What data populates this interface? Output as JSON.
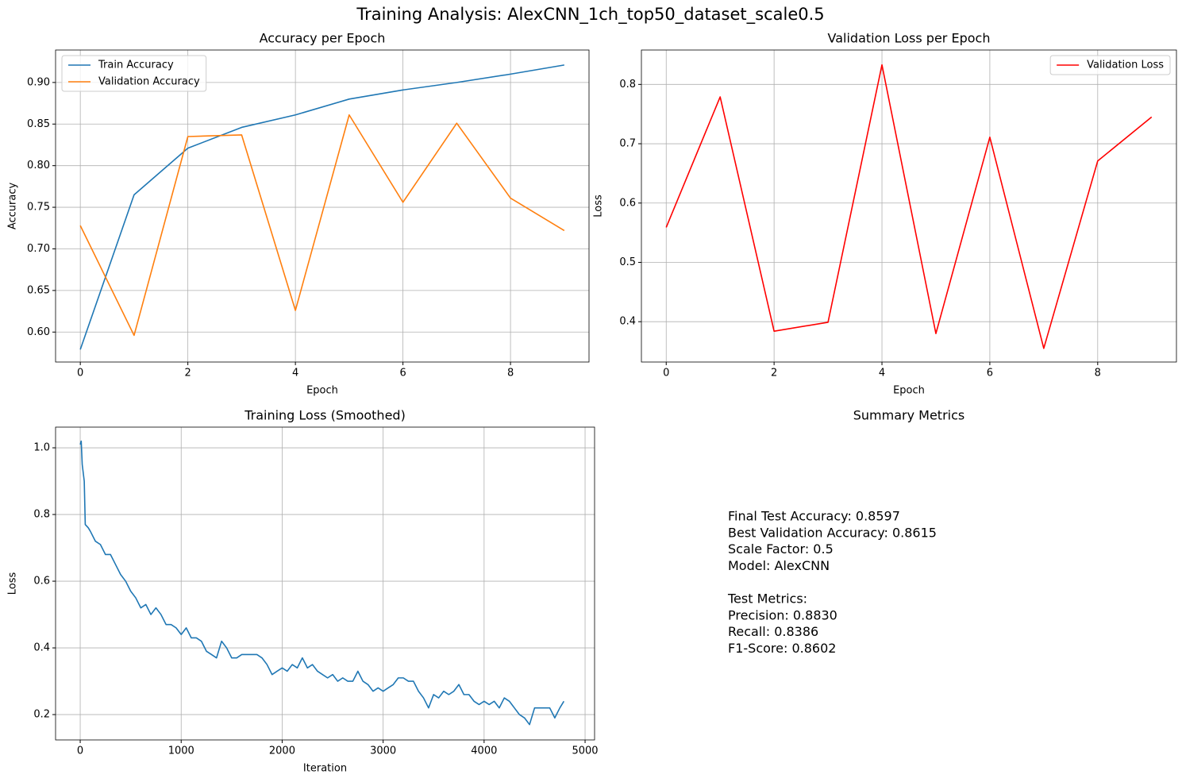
{
  "title": "Training Analysis: AlexCNN_1ch_top50_dataset_scale0.5",
  "chart_data": [
    {
      "type": "line",
      "title": "Accuracy per Epoch",
      "xlabel": "Epoch",
      "ylabel": "Accuracy",
      "x": [
        0,
        1,
        2,
        3,
        4,
        5,
        6,
        7,
        8,
        9
      ],
      "series": [
        {
          "name": "Train Accuracy",
          "color": "#1f77b4",
          "values": [
            0.579,
            0.765,
            0.821,
            0.846,
            0.861,
            0.88,
            0.891,
            0.9,
            0.91,
            0.921
          ]
        },
        {
          "name": "Validation Accuracy",
          "color": "#ff7f0e",
          "values": [
            0.728,
            0.596,
            0.835,
            0.837,
            0.626,
            0.861,
            0.756,
            0.851,
            0.761,
            0.722
          ]
        }
      ],
      "xlim": [
        -0.46,
        9.46
      ],
      "xticks": [
        0,
        2,
        4,
        6,
        8
      ],
      "ylim": [
        0.564,
        0.939
      ],
      "yticks": [
        {
          "value": 0.6,
          "label": "0.60"
        },
        0.65,
        {
          "value": 0.7,
          "label": "0.70"
        },
        0.75,
        {
          "value": 0.8,
          "label": "0.80"
        },
        0.85,
        {
          "value": 0.9,
          "label": "0.90"
        }
      ],
      "grid": true,
      "legend": "upper left"
    },
    {
      "type": "line",
      "title": "Validation Loss per Epoch",
      "xlabel": "Epoch",
      "ylabel": "Loss",
      "x": [
        0,
        1,
        2,
        3,
        4,
        5,
        6,
        7,
        8,
        9
      ],
      "series": [
        {
          "name": "Validation Loss",
          "color": "#ff0000",
          "values": [
            0.559,
            0.779,
            0.384,
            0.399,
            0.833,
            0.38,
            0.711,
            0.355,
            0.671,
            0.745
          ]
        }
      ],
      "xlim": [
        -0.46,
        9.46
      ],
      "xticks": [
        0,
        2,
        4,
        6,
        8
      ],
      "ylim": [
        0.332,
        0.858
      ],
      "yticks": [
        0.4,
        0.5,
        0.6,
        0.7,
        0.8
      ],
      "grid": true,
      "legend": "upper right"
    },
    {
      "type": "line",
      "title": "Training Loss (Smoothed)",
      "xlabel": "Iteration",
      "ylabel": "Loss",
      "x": [
        0,
        10,
        20,
        40,
        50,
        80,
        100,
        150,
        200,
        250,
        300,
        350,
        400,
        450,
        500,
        550,
        600,
        650,
        700,
        750,
        800,
        850,
        900,
        950,
        1000,
        1050,
        1100,
        1150,
        1200,
        1250,
        1300,
        1350,
        1400,
        1450,
        1500,
        1550,
        1600,
        1650,
        1700,
        1750,
        1800,
        1850,
        1900,
        1950,
        2000,
        2050,
        2100,
        2150,
        2200,
        2250,
        2300,
        2350,
        2400,
        2450,
        2500,
        2550,
        2600,
        2650,
        2700,
        2750,
        2800,
        2850,
        2900,
        2950,
        3000,
        3050,
        3100,
        3150,
        3200,
        3250,
        3300,
        3350,
        3400,
        3450,
        3500,
        3550,
        3600,
        3650,
        3700,
        3750,
        3800,
        3850,
        3900,
        3950,
        4000,
        4050,
        4100,
        4150,
        4200,
        4250,
        4300,
        4350,
        4400,
        4450,
        4500,
        4550,
        4600,
        4650,
        4700,
        4750,
        4790
      ],
      "series": [
        {
          "color": "#1f77b4",
          "values": [
            1.01,
            1.02,
            0.95,
            0.9,
            0.77,
            0.76,
            0.75,
            0.72,
            0.71,
            0.68,
            0.68,
            0.65,
            0.62,
            0.6,
            0.57,
            0.55,
            0.52,
            0.53,
            0.5,
            0.52,
            0.5,
            0.47,
            0.47,
            0.46,
            0.44,
            0.46,
            0.43,
            0.43,
            0.42,
            0.39,
            0.38,
            0.37,
            0.42,
            0.4,
            0.37,
            0.37,
            0.38,
            0.38,
            0.38,
            0.38,
            0.37,
            0.35,
            0.32,
            0.33,
            0.34,
            0.33,
            0.35,
            0.34,
            0.37,
            0.34,
            0.35,
            0.33,
            0.32,
            0.31,
            0.32,
            0.3,
            0.31,
            0.3,
            0.3,
            0.33,
            0.3,
            0.29,
            0.27,
            0.28,
            0.27,
            0.28,
            0.29,
            0.31,
            0.31,
            0.3,
            0.3,
            0.27,
            0.25,
            0.22,
            0.26,
            0.25,
            0.27,
            0.26,
            0.27,
            0.29,
            0.26,
            0.26,
            0.24,
            0.23,
            0.24,
            0.23,
            0.24,
            0.22,
            0.25,
            0.24,
            0.22,
            0.2,
            0.19,
            0.17,
            0.22,
            0.22,
            0.22,
            0.22,
            0.19,
            0.22,
            0.24
          ]
        }
      ],
      "xlim": [
        -244,
        5094
      ],
      "xticks": [
        0,
        1000,
        2000,
        3000,
        4000,
        5000
      ],
      "ylim": [
        0.124,
        1.062
      ],
      "yticks": [
        0.2,
        0.4,
        0.6,
        0.8,
        {
          "value": 1.0,
          "label": "1.0"
        }
      ],
      "grid": true
    },
    {
      "type": "text",
      "title": "Summary Metrics",
      "blocks": [
        [
          "Final Test Accuracy: 0.8597",
          "Best Validation Accuracy: 0.8615",
          "Scale Factor: 0.5",
          "Model: AlexCNN"
        ],
        [
          "Test Metrics:",
          "Precision: 0.8830",
          "Recall: 0.8386",
          "F1-Score: 0.8602"
        ]
      ]
    }
  ]
}
